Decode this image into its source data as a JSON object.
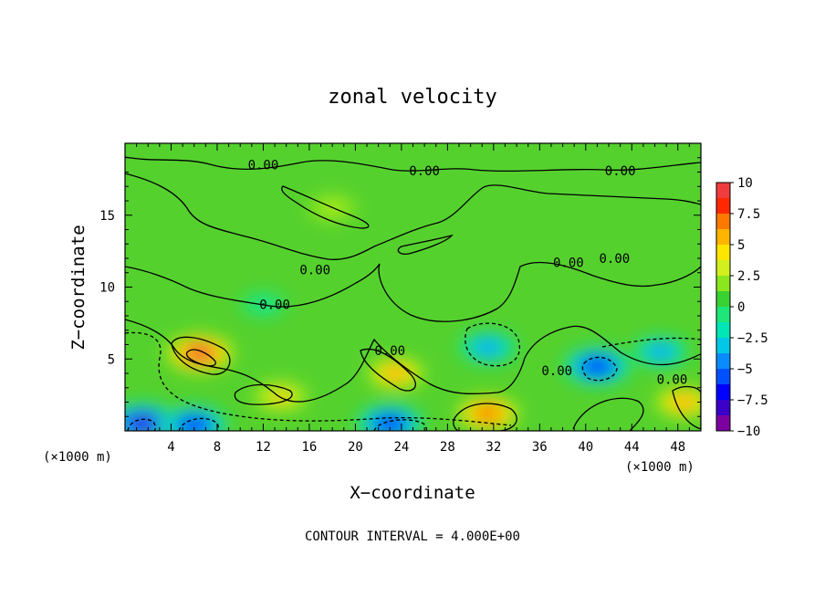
{
  "chart_data": {
    "type": "heatmap",
    "title": "zonal velocity",
    "xlabel": "X−coordinate",
    "ylabel": "Z−coordinate",
    "x_unit_left": "(×1000 m)",
    "x_unit_right": "(×1000 m)",
    "xlim": [
      0,
      50
    ],
    "ylim": [
      0,
      20
    ],
    "x_ticks": [
      4,
      8,
      12,
      16,
      20,
      24,
      28,
      32,
      36,
      40,
      44,
      48
    ],
    "y_ticks": [
      5,
      10,
      15
    ],
    "colorbar": {
      "range": [
        -10,
        10
      ],
      "ticks": [
        10,
        7.5,
        5,
        2.5,
        0,
        -2.5,
        -5,
        -7.5,
        -10
      ],
      "tick_labels": [
        "10",
        "7.5",
        "5",
        "2.5",
        "0",
        "−2.5",
        "−5",
        "−7.5",
        "−10"
      ]
    },
    "contour_interval": 4.0,
    "contour_labels": [
      "0.00",
      "0.00",
      "0.00",
      "0.00",
      "0.00",
      "0.00",
      "0.00",
      "0.00",
      "0.00",
      "0.00"
    ],
    "footer": "CONTOUR INTERVAL = 4.000E+00",
    "field_features": [
      {
        "x": 6.5,
        "z": 5.4,
        "value": 8.5
      },
      {
        "x": 23.5,
        "z": 4.0,
        "value": 6
      },
      {
        "x": 31.5,
        "z": 1.2,
        "value": 7
      },
      {
        "x": 13.5,
        "z": 2.4,
        "value": 5
      },
      {
        "x": 18.0,
        "z": 15.5,
        "value": 3
      },
      {
        "x": 31.5,
        "z": 5.8,
        "value": -5.5
      },
      {
        "x": 41.0,
        "z": 4.5,
        "value": -8
      },
      {
        "x": 1.5,
        "z": 0.5,
        "value": -9
      },
      {
        "x": 6.0,
        "z": 0.4,
        "value": -8
      },
      {
        "x": 23.0,
        "z": 0.5,
        "value": -8
      },
      {
        "x": 46.5,
        "z": 5.5,
        "value": -5
      },
      {
        "x": 12.0,
        "z": 8.8,
        "value": -2
      },
      {
        "x": 48.5,
        "z": 2.0,
        "value": 6
      }
    ]
  }
}
